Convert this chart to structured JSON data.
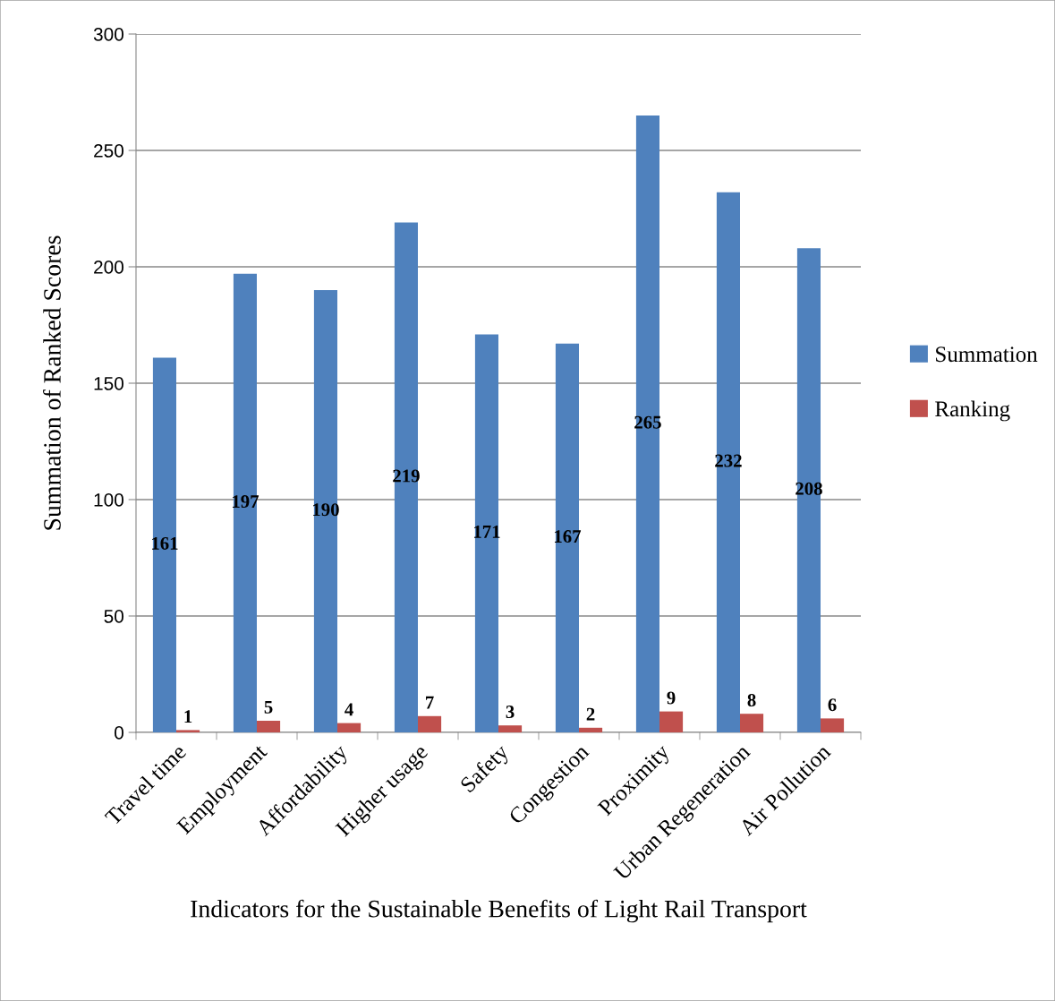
{
  "chart_data": {
    "type": "bar",
    "xlabel": "Indicators for the Sustainable Benefits of Light Rail Transport",
    "ylabel": "Summation of Ranked Scores",
    "categories": [
      "Travel time",
      "Employment",
      "Affordability",
      "Higher usage",
      "Safety",
      "Congestion",
      "Proximity",
      "Urban Regeneration",
      "Air Pollution"
    ],
    "series": [
      {
        "name": "Summation",
        "color": "#4f81bd",
        "values": [
          161,
          197,
          190,
          219,
          171,
          167,
          265,
          232,
          208
        ]
      },
      {
        "name": "Ranking",
        "color": "#c0504d",
        "values": [
          1,
          5,
          4,
          7,
          3,
          2,
          9,
          8,
          6
        ]
      }
    ],
    "ylim": [
      0,
      300
    ],
    "yticks": [
      0,
      50,
      100,
      150,
      200,
      250,
      300
    ],
    "grid": "y",
    "legend": "right",
    "data_labels": true
  }
}
